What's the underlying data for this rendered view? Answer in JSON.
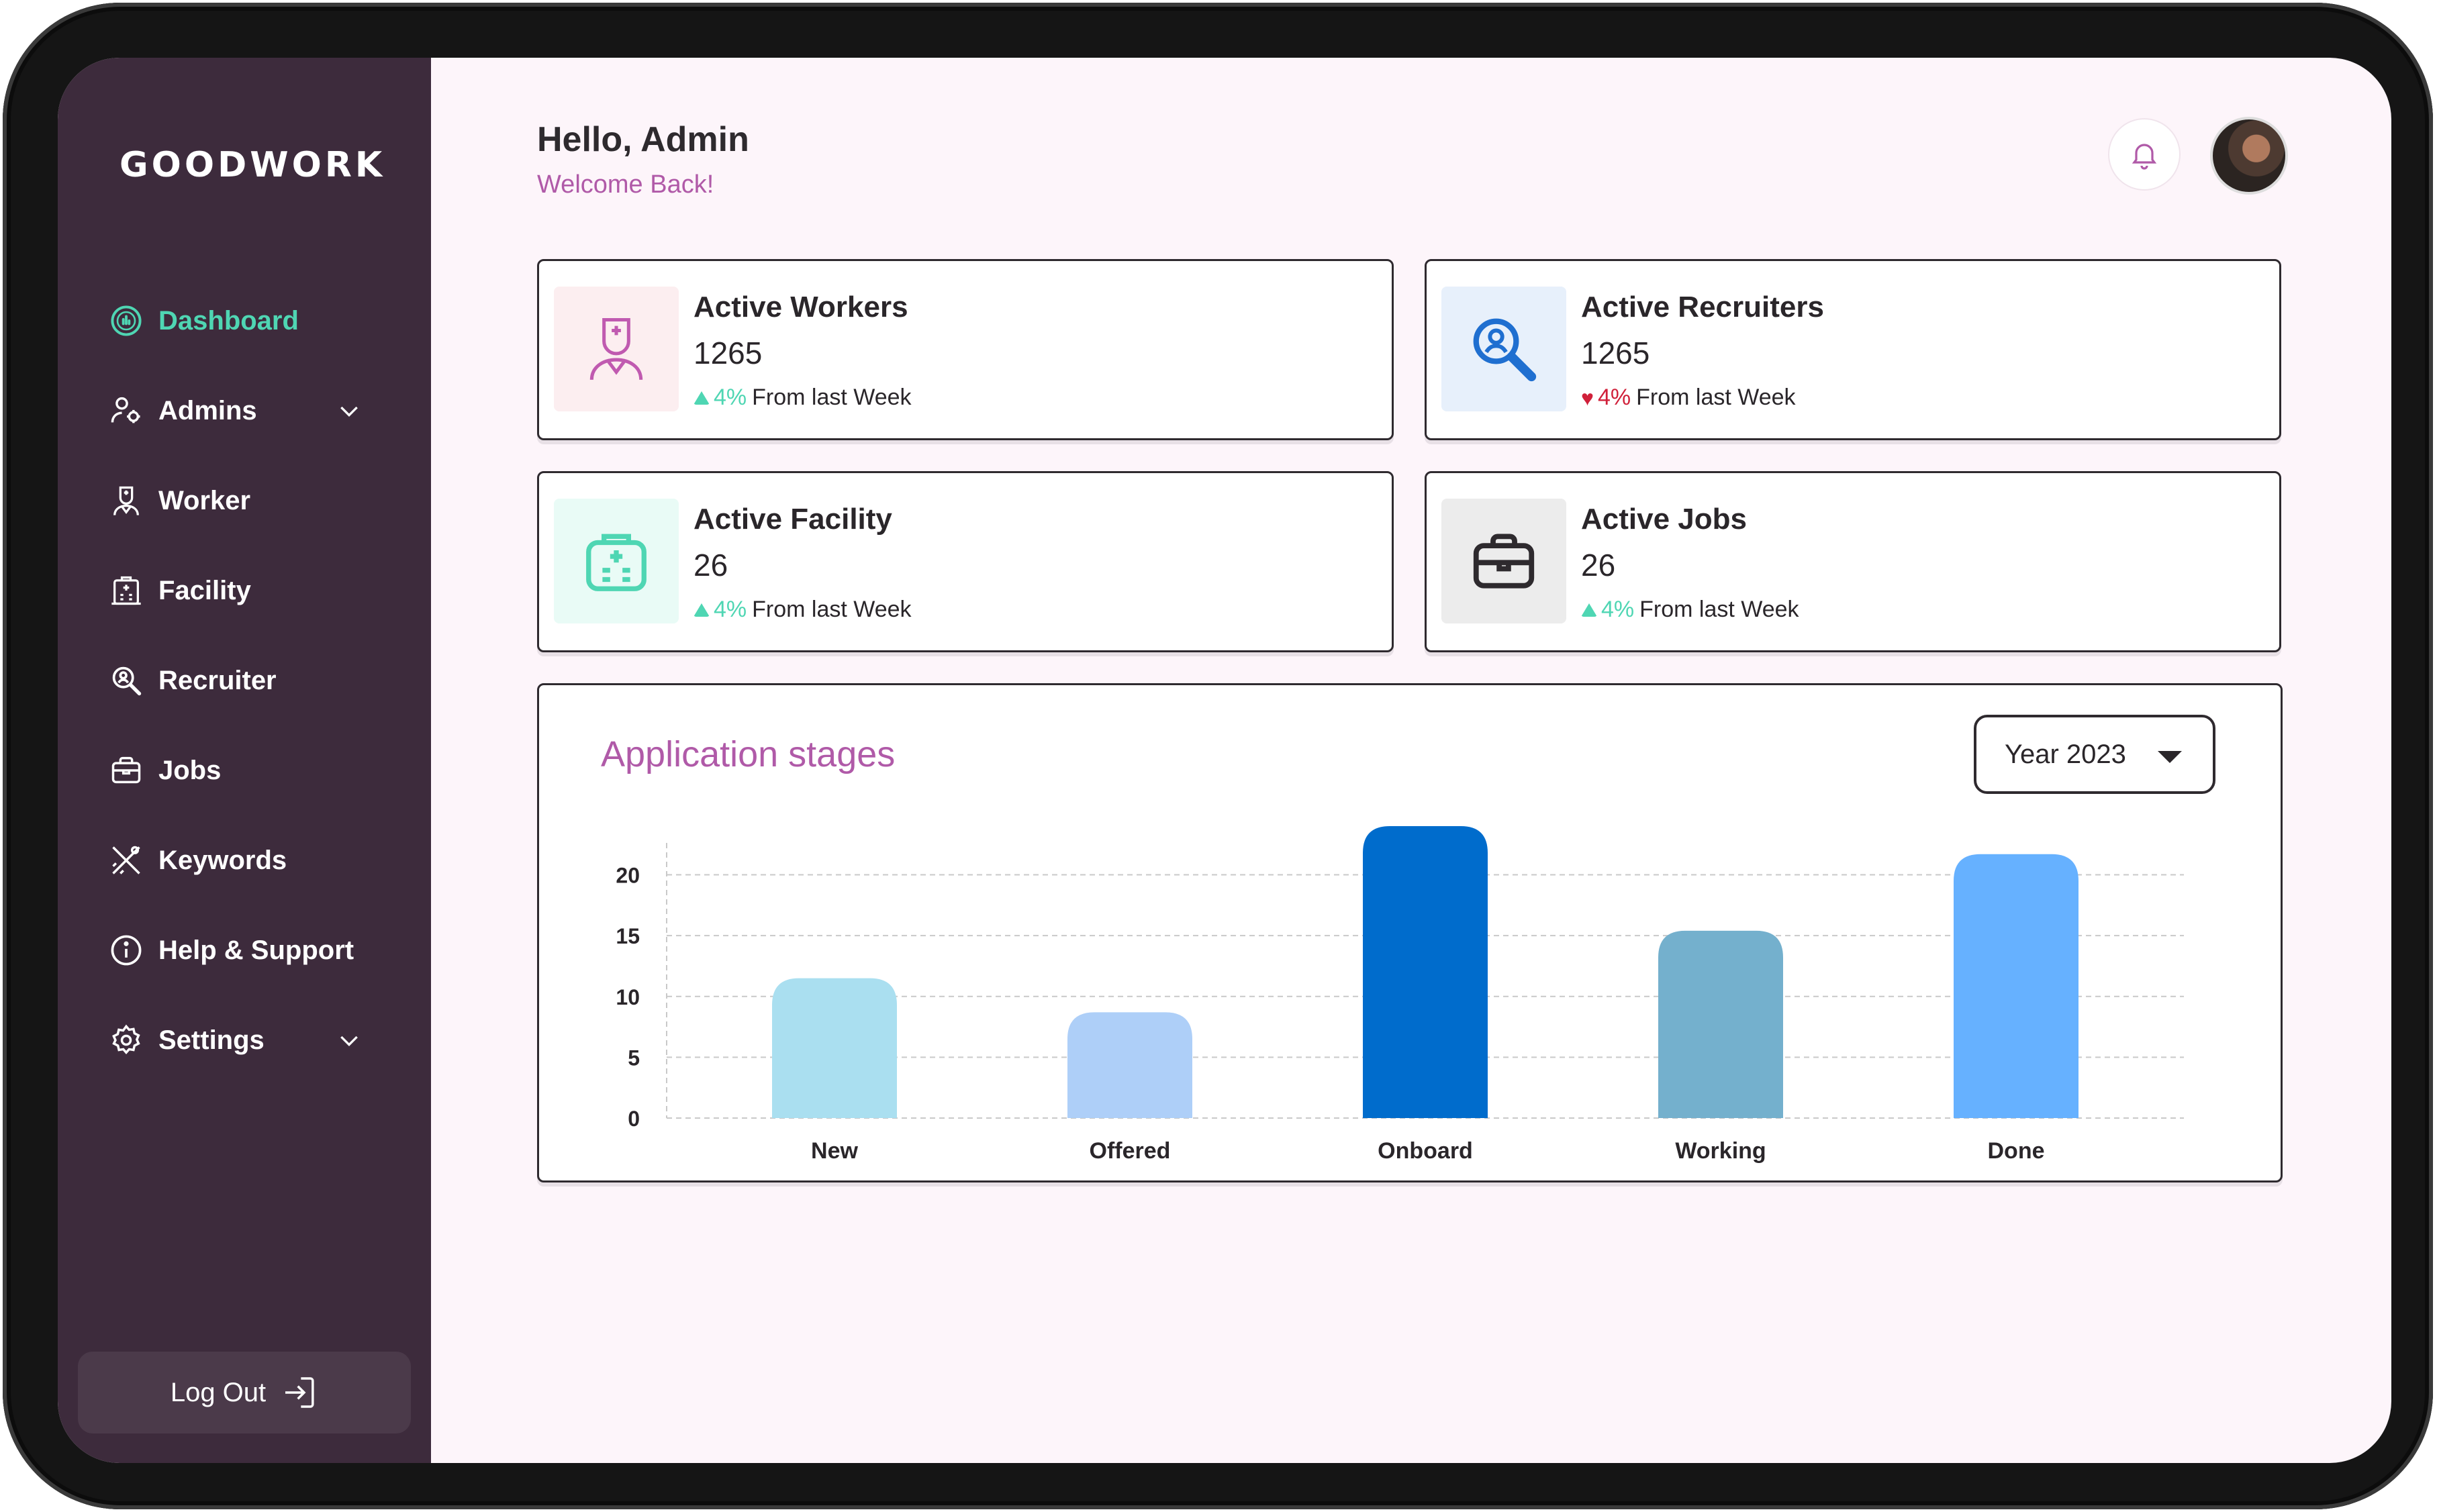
{
  "app": {
    "logo": "GOODWORK"
  },
  "sidebar": {
    "items": [
      {
        "label": "Dashboard",
        "icon": "dashboard-icon",
        "active": true
      },
      {
        "label": "Admins",
        "icon": "admins-icon",
        "has_submenu": true
      },
      {
        "label": "Worker",
        "icon": "worker-icon"
      },
      {
        "label": "Facility",
        "icon": "facility-icon"
      },
      {
        "label": "Recruiter",
        "icon": "recruiter-icon"
      },
      {
        "label": "Jobs",
        "icon": "jobs-icon"
      },
      {
        "label": "Keywords",
        "icon": "keywords-icon"
      },
      {
        "label": "Help & Support",
        "icon": "help-icon"
      },
      {
        "label": "Settings",
        "icon": "settings-icon",
        "has_submenu": true
      }
    ],
    "logout_label": "Log Out"
  },
  "header": {
    "greeting": "Hello, Admin",
    "subtitle": "Welcome Back!"
  },
  "stats": [
    {
      "title": "Active Workers",
      "value": "1265",
      "change": "4%",
      "direction": "up",
      "suffix": "From last Week",
      "icon": "nurse-icon",
      "icon_bg": "#fceef0",
      "icon_color": "#c05ab0"
    },
    {
      "title": "Active Recruiters",
      "value": "1265",
      "change": "4%",
      "direction": "down",
      "suffix": "From last Week",
      "icon": "search-user-icon",
      "icon_bg": "#e7f0fb",
      "icon_color": "#1f6fd0"
    },
    {
      "title": "Active Facility",
      "value": "26",
      "change": "4%",
      "direction": "up",
      "suffix": "From last Week",
      "icon": "hospital-icon",
      "icon_bg": "#e9fbf6",
      "icon_color": "#4fd6b3"
    },
    {
      "title": "Active Jobs",
      "value": "26",
      "change": "4%",
      "direction": "up",
      "suffix": "From last Week",
      "icon": "briefcase-icon",
      "icon_bg": "#ececec",
      "icon_color": "#2e2a2e"
    }
  ],
  "colors": {
    "accent_green": "#4fd6b3",
    "accent_pink": "#b05aa8",
    "down_red": "#d0203a",
    "sidebar_bg": "#3d2b3c"
  },
  "chart": {
    "title": "Application stages",
    "year_select": "Year 2023"
  },
  "chart_data": {
    "type": "bar",
    "title": "Application stages",
    "categories": [
      "New",
      "Offered",
      "Onboard",
      "Working",
      "Done"
    ],
    "values": [
      11.5,
      8.7,
      24,
      15.4,
      21.7
    ],
    "colors": [
      "#aadff0",
      "#aecff8",
      "#006ccc",
      "#74b0cd",
      "#66b1ff"
    ],
    "yticks": [
      0,
      5,
      10,
      15,
      20
    ],
    "ylim": [
      0,
      24
    ],
    "grid": true,
    "xlabel": "",
    "ylabel": ""
  }
}
